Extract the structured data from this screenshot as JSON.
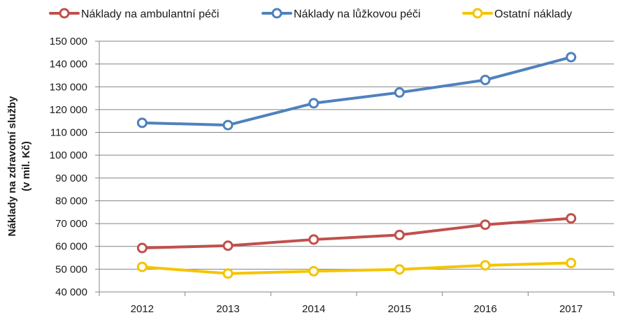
{
  "chart_data": {
    "type": "line",
    "categories": [
      "2012",
      "2013",
      "2014",
      "2015",
      "2016",
      "2017"
    ],
    "ylabel_line1": "Náklady na zdravotní služby",
    "ylabel_line2": "(v mil. Kč)",
    "ylim": [
      40000,
      150000
    ],
    "ytick_step": 10000,
    "ytick_labels": [
      "40 000",
      "50 000",
      "60 000",
      "70 000",
      "80 000",
      "90 000",
      "100 000",
      "110 000",
      "120 000",
      "130 000",
      "140 000",
      "150 000"
    ],
    "grid": "horizontal",
    "legend_position": "top",
    "series": [
      {
        "name": "Náklady na ambulantní péči",
        "color": "#c0504d",
        "values": [
          59300,
          60300,
          63000,
          65000,
          69500,
          72300
        ]
      },
      {
        "name": "Náklady na lůžkovou péči",
        "color": "#4f81bd",
        "values": [
          114200,
          113200,
          122800,
          127500,
          133000,
          143000
        ]
      },
      {
        "name": "Ostatní náklady",
        "color": "#f5c400",
        "values": [
          51000,
          48100,
          49100,
          49900,
          51700,
          52700
        ]
      }
    ]
  }
}
